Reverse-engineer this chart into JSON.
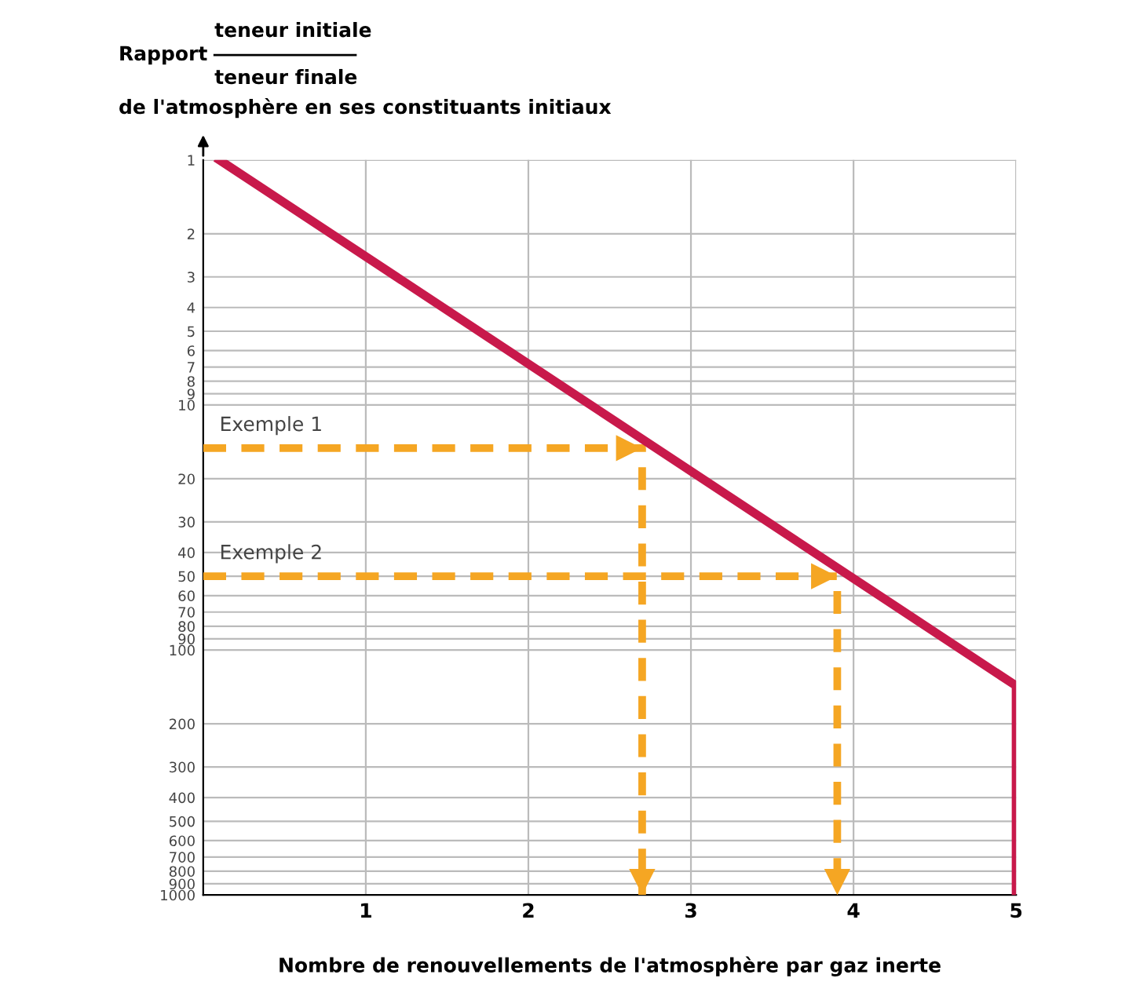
{
  "chart_data": {
    "type": "line",
    "xlabel": "Nombre de renouvellements de l'atmosphère par gaz inerte",
    "ylabel": "de l'atmosphère en ses constituants initiaux",
    "annotations": [
      "Rapport",
      "teneur initiale",
      "teneur finale",
      {
        "text": "Exemple 1",
        "x": 0.1,
        "y": 15
      },
      {
        "text": "Exemple 2",
        "x": 0.1,
        "y": 50
      }
    ],
    "series": [
      {
        "color": "#c8194b",
        "x": [
          0.1,
          5,
          5
        ],
        "values": [
          1,
          140,
          1000
        ],
        "line_style": "solid"
      },
      {
        "color": "#f5a623",
        "x": [
          0,
          2.7,
          2.7
        ],
        "values": [
          15,
          15,
          1000
        ],
        "line_style": "dashed"
      },
      {
        "color": "#f5a623",
        "x": [
          0,
          3.9,
          3.9
        ],
        "values": [
          50,
          50,
          1000
        ],
        "line_style": "dashed"
      }
    ],
    "log": "y",
    "xlim": [
      0,
      5
    ],
    "xticks": [
      1,
      2,
      3,
      4,
      5
    ],
    "ylim": [
      1000,
      1
    ],
    "yticks": [
      1,
      2,
      3,
      4,
      5,
      6,
      7,
      8,
      9,
      10,
      20,
      30,
      40,
      50,
      60,
      70,
      80,
      90,
      100,
      200,
      300,
      400,
      500,
      600,
      700,
      800,
      900,
      1000
    ],
    "grid": true,
    "legend": false,
    "marker": "none"
  }
}
